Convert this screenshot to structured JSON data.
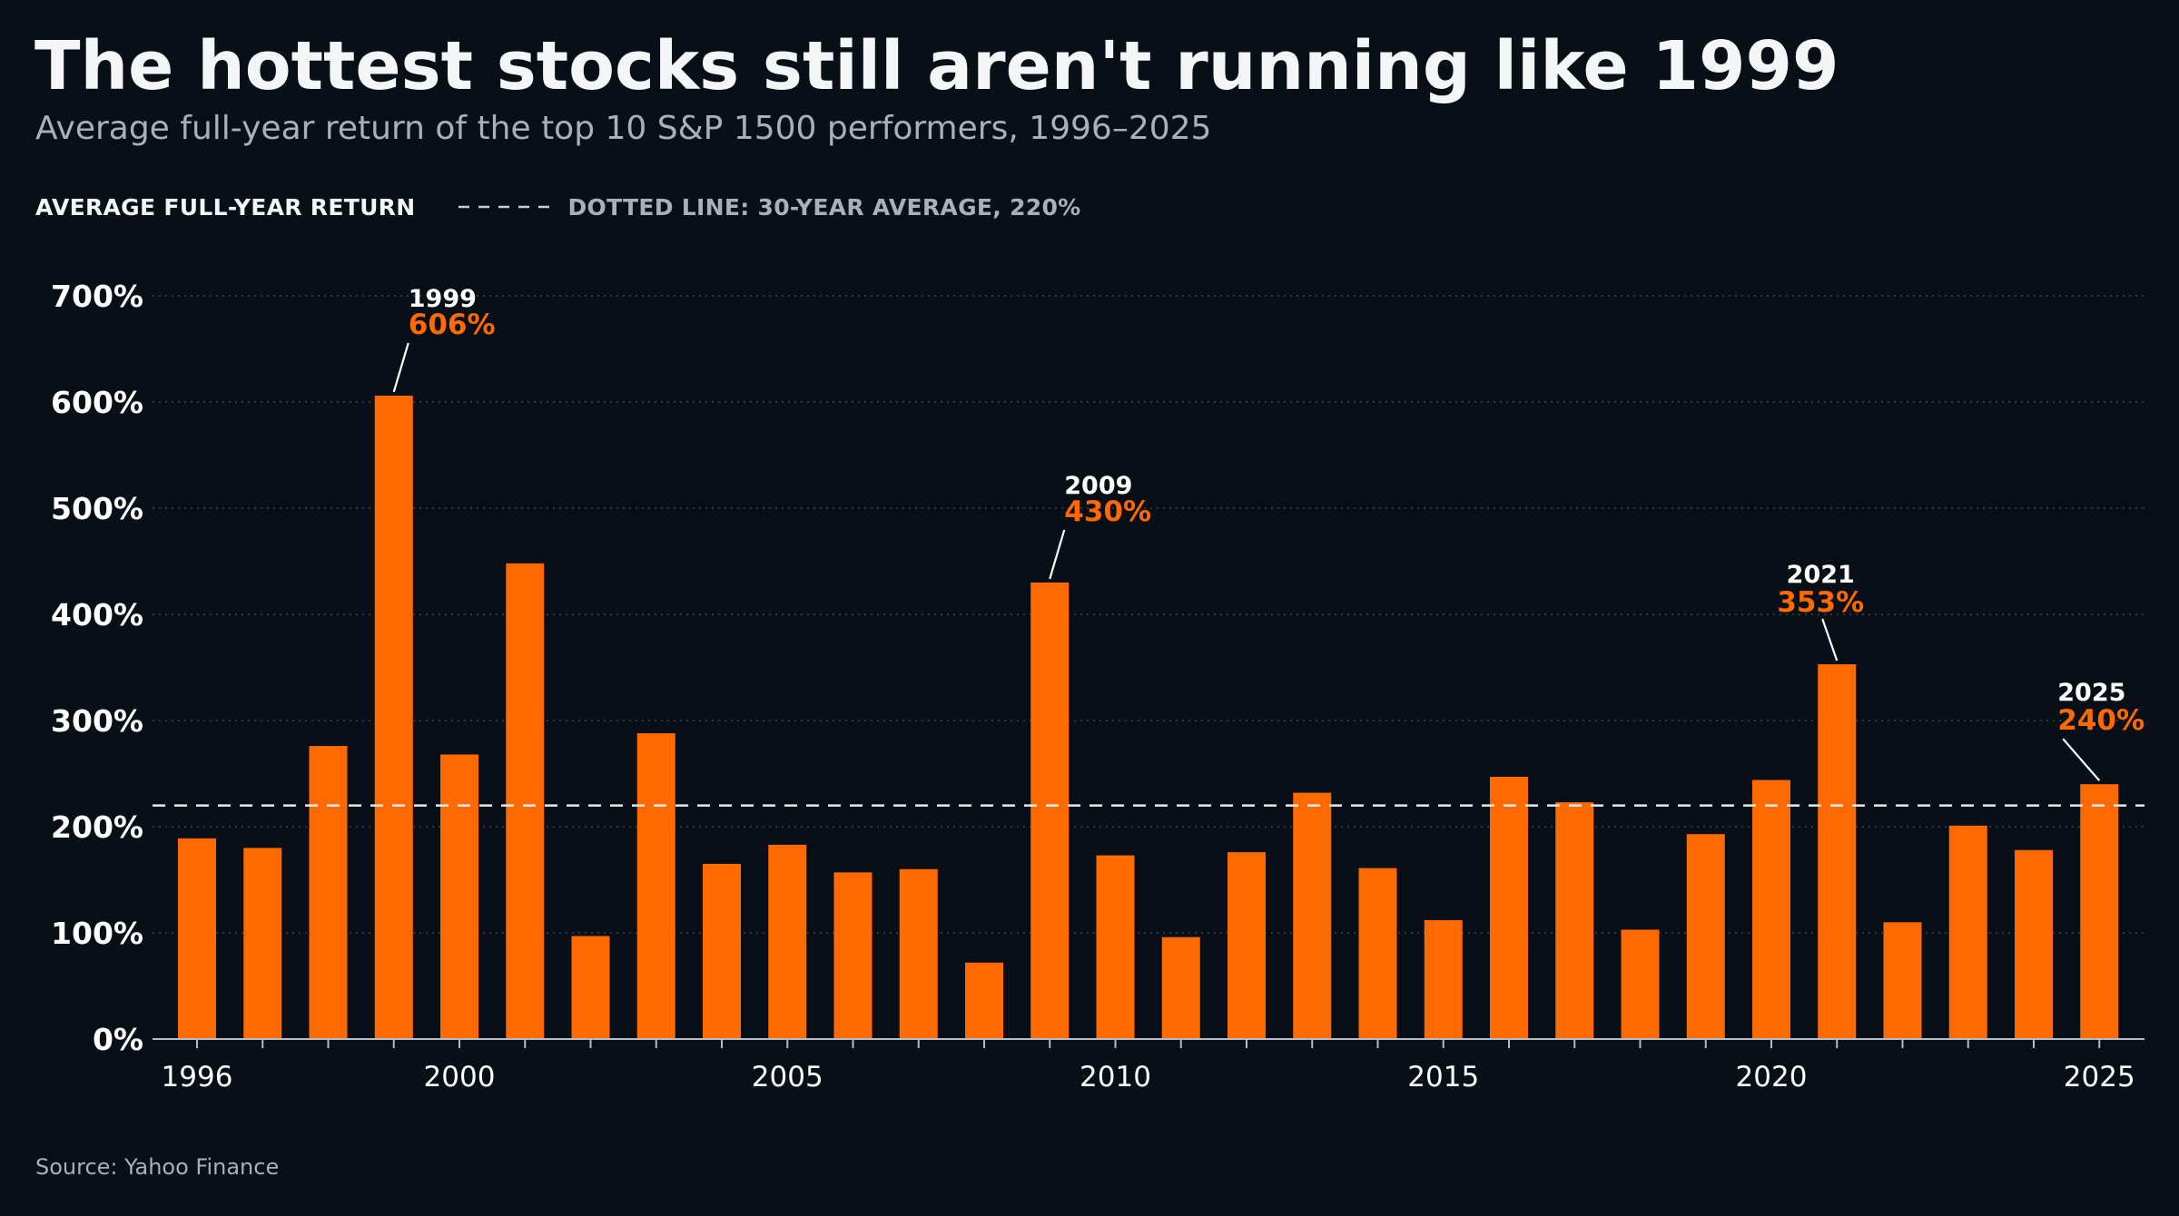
{
  "header": {
    "title": "The hottest stocks still aren't running like 1999",
    "subtitle": "Average full-year return of the top 10 S&P 1500 performers, 1996–2025"
  },
  "legend": {
    "primary": "AVERAGE FULL-YEAR RETURN",
    "reference": "DOTTED LINE: 30-YEAR AVERAGE, 220%"
  },
  "footer": {
    "source": "Source: Yahoo Finance"
  },
  "colors": {
    "background": "#080f16",
    "bar": "#ff6a00",
    "highlight_text": "#ff6a00",
    "grid": "#2a3a3e",
    "axis": "#b6bcc3",
    "text": "#ffffff",
    "muted_text": "#a9b0b8"
  },
  "chart_data": {
    "type": "bar",
    "title": "The hottest stocks still aren't running like 1999",
    "subtitle": "Average full-year return of the top 10 S&P 1500 performers, 1996–2025",
    "x": [
      1996,
      1997,
      1998,
      1999,
      2000,
      2001,
      2002,
      2003,
      2004,
      2005,
      2006,
      2007,
      2008,
      2009,
      2010,
      2011,
      2012,
      2013,
      2014,
      2015,
      2016,
      2017,
      2018,
      2019,
      2020,
      2021,
      2022,
      2023,
      2024,
      2025
    ],
    "series": [
      {
        "name": "AVERAGE FULL-YEAR RETURN",
        "unit": "%",
        "values": [
          189,
          180,
          276,
          606,
          268,
          448,
          97,
          288,
          165,
          183,
          157,
          160,
          72,
          430,
          173,
          96,
          176,
          232,
          161,
          112,
          247,
          223,
          103,
          193,
          244,
          353,
          110,
          201,
          178,
          240
        ]
      }
    ],
    "reference_line": {
      "value": 220,
      "label": "DOTTED LINE: 30-YEAR AVERAGE, 220%",
      "style": "dashed"
    },
    "y_ticks": [
      0,
      100,
      200,
      300,
      400,
      500,
      600,
      700
    ],
    "y_tick_labels": [
      "0%",
      "100%",
      "200%",
      "300%",
      "400%",
      "500%",
      "600%",
      "700%"
    ],
    "x_tick_labels": [
      "1996",
      "2000",
      "2005",
      "2010",
      "2015",
      "2020",
      "2025"
    ],
    "ylim": [
      0,
      700
    ],
    "xlabel": "",
    "ylabel": "",
    "grid": true,
    "annotations": [
      {
        "year": 1999,
        "year_label": "1999",
        "value_label": "606%",
        "side": "right"
      },
      {
        "year": 2009,
        "year_label": "2009",
        "value_label": "430%",
        "side": "right"
      },
      {
        "year": 2021,
        "year_label": "2021",
        "value_label": "353%",
        "side": "left"
      },
      {
        "year": 2025,
        "year_label": "2025",
        "value_label": "240%",
        "side": "left"
      }
    ],
    "legend_position": "top-left"
  }
}
